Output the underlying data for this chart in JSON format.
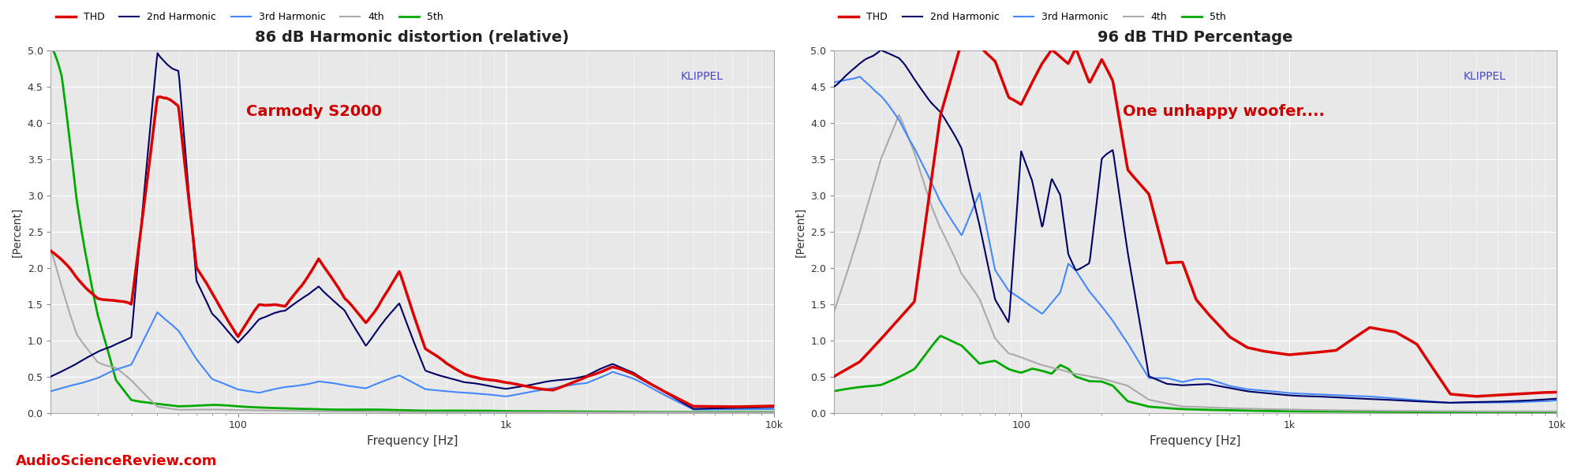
{
  "chart1": {
    "title": "86 dB Harmonic distortion (relative)",
    "annotation": "Carmody S2000",
    "annotation_color": "#cc0000",
    "klippel_text": "KLIPPEL",
    "klippel_color": "#4444cc",
    "ylabel": "[Percent]",
    "xlabel": "Frequency [Hz]",
    "ylim": [
      0.0,
      5.0
    ],
    "yticks": [
      0.0,
      0.5,
      1.0,
      1.5,
      2.0,
      2.5,
      3.0,
      3.5,
      4.0,
      4.5,
      5.0
    ],
    "bg_color": "#e8e8e8"
  },
  "chart2": {
    "title": "96 dB THD Percentage",
    "annotation": "One unhappy woofer....",
    "annotation_color": "#cc0000",
    "klippel_text": "KLIPPEL",
    "klippel_color": "#4444cc",
    "ylabel": "[Percent]",
    "xlabel": "Frequency [Hz]",
    "ylim": [
      0.0,
      5.0
    ],
    "yticks": [
      0.0,
      0.5,
      1.0,
      1.5,
      2.0,
      2.5,
      3.0,
      3.5,
      4.0,
      4.5,
      5.0
    ],
    "bg_color": "#e8e8e8"
  },
  "legend": {
    "THD": {
      "color": "#dd0000",
      "lw": 2.5,
      "label": "THD"
    },
    "2nd": {
      "color": "#000066",
      "lw": 1.5,
      "label": "2nd Harmonic"
    },
    "3rd": {
      "color": "#4488ff",
      "lw": 1.5,
      "label": "3rd Harmonic"
    },
    "4th": {
      "color": "#aaaaaa",
      "lw": 1.5,
      "label": "4th"
    },
    "5th": {
      "color": "#00aa00",
      "lw": 2.0,
      "label": "5th"
    }
  },
  "fig_bg": "#ffffff",
  "watermark": "AudioScienceReview.com",
  "watermark_color": "#dd0000",
  "watermark_fontsize": 13
}
